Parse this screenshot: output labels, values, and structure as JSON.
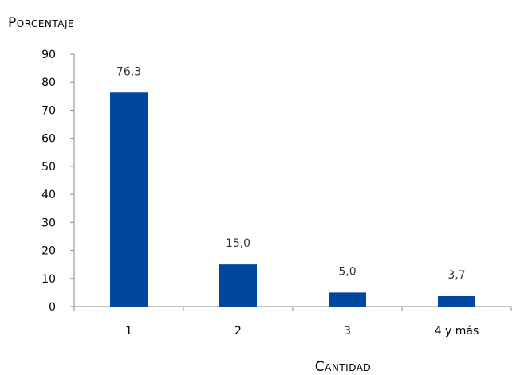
{
  "chart_data": {
    "type": "bar",
    "title": "",
    "xlabel": "Cantidad",
    "ylabel": "Porcentaje",
    "categories": [
      "1",
      "2",
      "3",
      "4 y más"
    ],
    "values": [
      76.3,
      15.0,
      5.0,
      3.7
    ],
    "value_labels": [
      "76,3",
      "15,0",
      "5,0",
      "3,7"
    ],
    "ylim": [
      0,
      90
    ],
    "yticks": [
      0,
      10,
      20,
      30,
      40,
      50,
      60,
      70,
      80,
      90
    ],
    "grid": false,
    "legend": "none",
    "bar_color": "#0047A0"
  }
}
